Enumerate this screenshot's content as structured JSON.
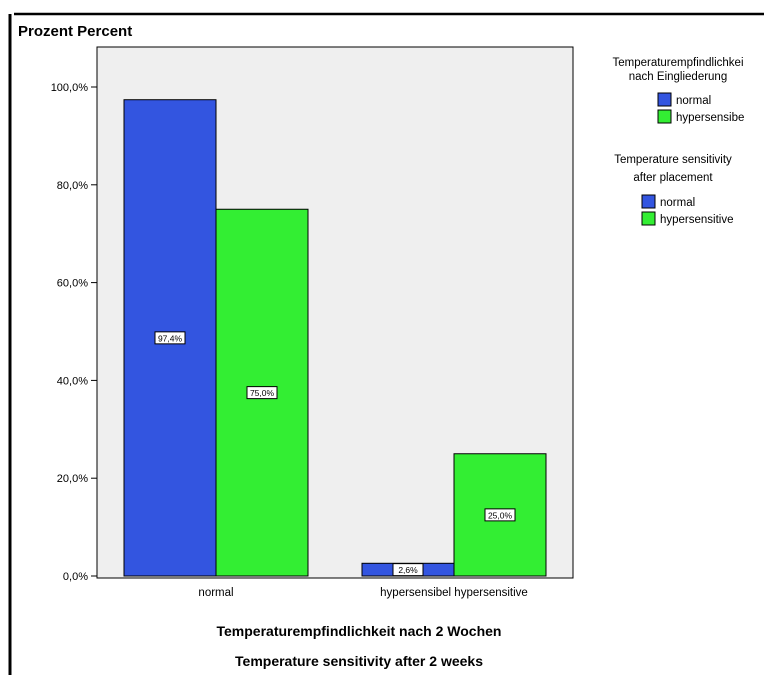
{
  "chart_data": {
    "type": "bar",
    "title": "Prozent Percent",
    "ylabel": "Prozent Percent",
    "xlabel_line1": "Temperaturempfindlichkeit nach 2 Wochen",
    "xlabel_line2": "Temperature sensitivity after 2 weeks",
    "categories": [
      "normal",
      "hypersensibel  hypersensitive"
    ],
    "ylim": [
      0,
      100
    ],
    "yticks": [
      0,
      20,
      40,
      60,
      80,
      100
    ],
    "ytick_labels": [
      "0,0%",
      "20,0%",
      "40,0%",
      "60,0%",
      "80,0%",
      "100,0%"
    ],
    "grid": false,
    "legend_placement": "right",
    "legend": {
      "title_de_line1": "Temperaturempfindlichkei",
      "title_de_line2": "nach Eingliederung",
      "items_de": [
        "normal",
        "hypersensibe"
      ],
      "title_en_line1": "Temperature sensitivity",
      "title_en_line2": "after placement",
      "items_en": [
        "normal",
        "hypersensitive"
      ]
    },
    "series": [
      {
        "name": "normal",
        "color": "#3355e0",
        "values": [
          97.4,
          2.6
        ],
        "labels": [
          "97,4%",
          "2,6%"
        ]
      },
      {
        "name": "hypersensitive",
        "color": "#33ee33",
        "values": [
          75.0,
          25.0
        ],
        "labels": [
          "75,0%",
          "25,0%"
        ]
      }
    ],
    "plot_background": "#efefef"
  }
}
